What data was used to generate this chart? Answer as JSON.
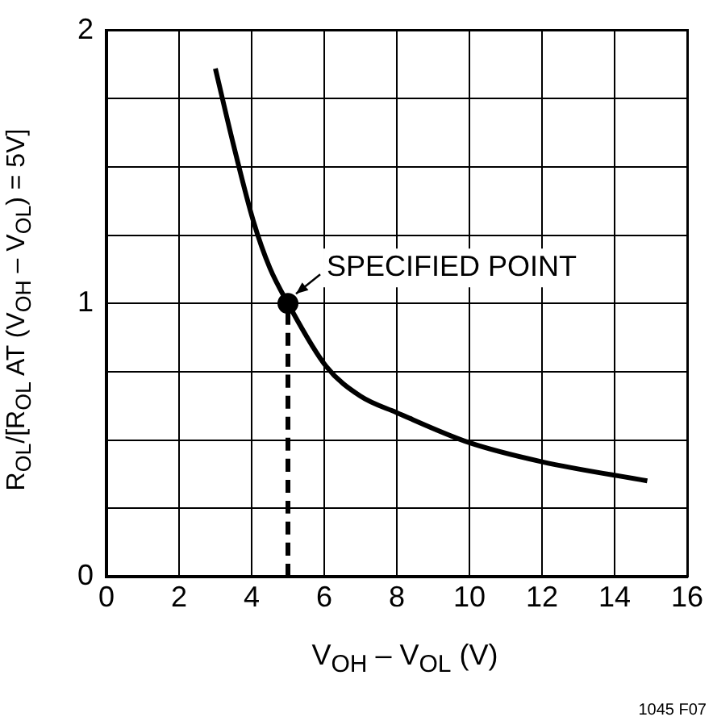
{
  "chart_data": {
    "type": "line",
    "xlabel": "V$_{OH}$ – V$_{OL}$ (V)",
    "ylabel": "R$_{OL}$/[R$_{OL}$ AT (V$_{OH}$ – V$_{OL}$) = 5V]",
    "xlim": [
      0,
      16
    ],
    "xticks": [
      0,
      2,
      4,
      6,
      8,
      10,
      12,
      14,
      16
    ],
    "ylim": [
      0,
      2
    ],
    "yticks": [
      0,
      {
        "value": 0.25,
        "label": null
      },
      {
        "value": 0.5,
        "label": null
      },
      {
        "value": 0.75,
        "label": null
      },
      1,
      {
        "value": 1.25,
        "label": null
      },
      {
        "value": 1.5,
        "label": null
      },
      {
        "value": 1.75,
        "label": null
      },
      2
    ],
    "grid": true,
    "legend": false,
    "series": [
      {
        "color": "#000000",
        "marker": "none",
        "line_style": "solid",
        "x": [
          3,
          3.5,
          4.05,
          4.5,
          5,
          6.05,
          7,
          8,
          10,
          12,
          14.9
        ],
        "values": [
          1.86,
          1.58,
          1.3,
          1.13,
          1.0,
          0.77,
          0.66,
          0.6,
          0.49,
          0.42,
          0.35
        ]
      },
      {
        "type": "line",
        "color": "#000000",
        "marker": "none",
        "line_style": "dashed",
        "x": [
          5,
          5
        ],
        "values": [
          0,
          1
        ]
      },
      {
        "type": "scatter",
        "color": "#000000",
        "marker": "circle",
        "x": [
          5
        ],
        "values": [
          1
        ]
      }
    ],
    "annotations": [
      {
        "text": "SPECIFIED POINT",
        "x": 5,
        "y": 1
      },
      "1045 F07"
    ]
  }
}
